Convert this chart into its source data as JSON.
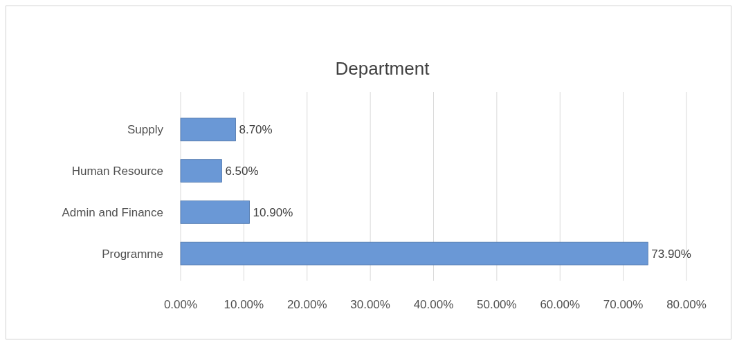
{
  "chart_data": {
    "type": "bar",
    "title": "Department",
    "orientation": "horizontal",
    "categories": [
      "Supply",
      "Human Resource",
      "Admin and Finance",
      "Programme"
    ],
    "values": [
      8.7,
      6.5,
      10.9,
      73.9
    ],
    "value_labels": [
      "8.70%",
      "6.50%",
      "10.90%",
      "73.90%"
    ],
    "color": "#6a98d6",
    "xlim": [
      0,
      80
    ],
    "xticks": [
      {
        "value": 0,
        "label": "0.00%"
      },
      {
        "value": 10,
        "label": "10.00%"
      },
      {
        "value": 20,
        "label": "20.00%"
      },
      {
        "value": 30,
        "label": "30.00%"
      },
      {
        "value": 40,
        "label": "40.00%"
      },
      {
        "value": 50,
        "label": "50.00%"
      },
      {
        "value": 60,
        "label": "60.00%"
      },
      {
        "value": 70,
        "label": "70.00%"
      },
      {
        "value": 80,
        "label": "80.00%"
      }
    ],
    "grid": "x"
  }
}
